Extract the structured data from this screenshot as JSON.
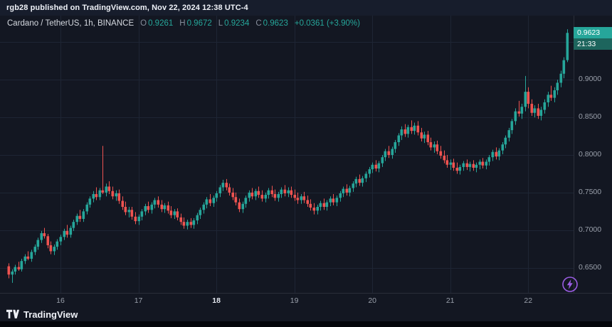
{
  "banner": {
    "text": "rgb28 published on TradingView.com, Nov 22, 2024 12:38 UTC-4"
  },
  "legend": {
    "title": "Cardano / TetherUS, 1h, BINANCE",
    "ohlc": [
      {
        "label": "O",
        "value": "0.9261"
      },
      {
        "label": "H",
        "value": "0.9672"
      },
      {
        "label": "L",
        "value": "0.9234"
      },
      {
        "label": "C",
        "value": "0.9623"
      }
    ],
    "change": "+0.0361 (+3.90%)"
  },
  "price_scale": {
    "last_price": "0.9623",
    "countdown": "21:33",
    "labels": [
      "0.9000",
      "0.8500",
      "0.8000",
      "0.7500",
      "0.7000",
      "0.6500"
    ]
  },
  "footer": {
    "brand": "TradingView"
  },
  "colors": {
    "up": "#26a69a",
    "down": "#ef5350",
    "background": "#131722",
    "banner_bg": "#171d2c",
    "grid": "#1e2534",
    "separator": "#2a2e39",
    "axis_text": "#9aa0ab",
    "tag_bg": "#26a69a",
    "countdown_bg": "#1d655d",
    "boost_purple": "#9b5de5"
  },
  "chart_data": {
    "type": "candlestick",
    "title": "Cardano / TetherUS",
    "exchange": "BINANCE",
    "interval": "1h",
    "last_candle": {
      "open": 0.9261,
      "high": 0.9672,
      "low": 0.9234,
      "close": 0.9623,
      "change": 0.0361,
      "change_pct": 3.9
    },
    "y_axis": {
      "min": 0.628,
      "max": 0.972,
      "gridlines": [
        0.65,
        0.7,
        0.75,
        0.8,
        0.85,
        0.9,
        0.95
      ]
    },
    "x_axis": {
      "ticks": [
        {
          "label": "16",
          "index": 16,
          "emphasis": false
        },
        {
          "label": "17",
          "index": 40,
          "emphasis": false
        },
        {
          "label": "18",
          "index": 64,
          "emphasis": true
        },
        {
          "label": "19",
          "index": 88,
          "emphasis": false
        },
        {
          "label": "20",
          "index": 112,
          "emphasis": false
        },
        {
          "label": "21",
          "index": 136,
          "emphasis": false
        },
        {
          "label": "22",
          "index": 160,
          "emphasis": false
        }
      ]
    },
    "ohlc_format": [
      "open",
      "high",
      "low",
      "close"
    ],
    "candles": [
      [
        0.652,
        0.656,
        0.636,
        0.641
      ],
      [
        0.641,
        0.648,
        0.63,
        0.645
      ],
      [
        0.645,
        0.654,
        0.641,
        0.651
      ],
      [
        0.651,
        0.658,
        0.646,
        0.648
      ],
      [
        0.648,
        0.662,
        0.645,
        0.659
      ],
      [
        0.659,
        0.668,
        0.655,
        0.665
      ],
      [
        0.665,
        0.672,
        0.66,
        0.662
      ],
      [
        0.662,
        0.674,
        0.658,
        0.671
      ],
      [
        0.671,
        0.681,
        0.667,
        0.678
      ],
      [
        0.678,
        0.69,
        0.674,
        0.687
      ],
      [
        0.687,
        0.699,
        0.683,
        0.696
      ],
      [
        0.696,
        0.703,
        0.689,
        0.692
      ],
      [
        0.692,
        0.695,
        0.676,
        0.68
      ],
      [
        0.68,
        0.685,
        0.668,
        0.672
      ],
      [
        0.672,
        0.681,
        0.667,
        0.678
      ],
      [
        0.678,
        0.688,
        0.674,
        0.685
      ],
      [
        0.685,
        0.694,
        0.68,
        0.691
      ],
      [
        0.691,
        0.702,
        0.687,
        0.699
      ],
      [
        0.699,
        0.707,
        0.69,
        0.694
      ],
      [
        0.694,
        0.706,
        0.69,
        0.703
      ],
      [
        0.703,
        0.714,
        0.699,
        0.711
      ],
      [
        0.711,
        0.722,
        0.707,
        0.719
      ],
      [
        0.719,
        0.727,
        0.711,
        0.715
      ],
      [
        0.715,
        0.728,
        0.711,
        0.725
      ],
      [
        0.725,
        0.737,
        0.721,
        0.734
      ],
      [
        0.734,
        0.745,
        0.73,
        0.742
      ],
      [
        0.742,
        0.752,
        0.737,
        0.748
      ],
      [
        0.748,
        0.757,
        0.74,
        0.744
      ],
      [
        0.744,
        0.756,
        0.74,
        0.753
      ],
      [
        0.753,
        0.812,
        0.748,
        0.75
      ],
      [
        0.75,
        0.762,
        0.745,
        0.758
      ],
      [
        0.758,
        0.765,
        0.748,
        0.752
      ],
      [
        0.752,
        0.758,
        0.741,
        0.745
      ],
      [
        0.745,
        0.753,
        0.739,
        0.749
      ],
      [
        0.749,
        0.754,
        0.735,
        0.739
      ],
      [
        0.739,
        0.745,
        0.727,
        0.731
      ],
      [
        0.731,
        0.738,
        0.72,
        0.724
      ],
      [
        0.724,
        0.731,
        0.717,
        0.727
      ],
      [
        0.727,
        0.731,
        0.714,
        0.718
      ],
      [
        0.718,
        0.724,
        0.708,
        0.712
      ],
      [
        0.712,
        0.721,
        0.707,
        0.718
      ],
      [
        0.718,
        0.728,
        0.713,
        0.725
      ],
      [
        0.725,
        0.735,
        0.72,
        0.732
      ],
      [
        0.732,
        0.738,
        0.723,
        0.727
      ],
      [
        0.727,
        0.737,
        0.722,
        0.734
      ],
      [
        0.734,
        0.743,
        0.729,
        0.74
      ],
      [
        0.74,
        0.745,
        0.73,
        0.734
      ],
      [
        0.734,
        0.74,
        0.724,
        0.728
      ],
      [
        0.728,
        0.736,
        0.723,
        0.733
      ],
      [
        0.733,
        0.738,
        0.722,
        0.726
      ],
      [
        0.726,
        0.732,
        0.716,
        0.72
      ],
      [
        0.72,
        0.728,
        0.715,
        0.725
      ],
      [
        0.725,
        0.729,
        0.713,
        0.717
      ],
      [
        0.717,
        0.722,
        0.707,
        0.711
      ],
      [
        0.711,
        0.717,
        0.702,
        0.706
      ],
      [
        0.706,
        0.714,
        0.701,
        0.711
      ],
      [
        0.711,
        0.716,
        0.703,
        0.707
      ],
      [
        0.707,
        0.716,
        0.702,
        0.713
      ],
      [
        0.713,
        0.723,
        0.708,
        0.72
      ],
      [
        0.72,
        0.73,
        0.715,
        0.727
      ],
      [
        0.727,
        0.737,
        0.722,
        0.734
      ],
      [
        0.734,
        0.744,
        0.729,
        0.741
      ],
      [
        0.741,
        0.748,
        0.732,
        0.736
      ],
      [
        0.736,
        0.746,
        0.731,
        0.743
      ],
      [
        0.743,
        0.752,
        0.738,
        0.749
      ],
      [
        0.749,
        0.76,
        0.744,
        0.757
      ],
      [
        0.757,
        0.767,
        0.752,
        0.763
      ],
      [
        0.763,
        0.768,
        0.753,
        0.757
      ],
      [
        0.757,
        0.762,
        0.746,
        0.75
      ],
      [
        0.75,
        0.756,
        0.74,
        0.744
      ],
      [
        0.744,
        0.75,
        0.733,
        0.737
      ],
      [
        0.737,
        0.742,
        0.724,
        0.728
      ],
      [
        0.728,
        0.738,
        0.723,
        0.735
      ],
      [
        0.735,
        0.746,
        0.73,
        0.743
      ],
      [
        0.743,
        0.753,
        0.738,
        0.75
      ],
      [
        0.75,
        0.756,
        0.741,
        0.745
      ],
      [
        0.745,
        0.755,
        0.74,
        0.752
      ],
      [
        0.752,
        0.758,
        0.743,
        0.747
      ],
      [
        0.747,
        0.753,
        0.738,
        0.742
      ],
      [
        0.742,
        0.75,
        0.737,
        0.747
      ],
      [
        0.747,
        0.756,
        0.742,
        0.753
      ],
      [
        0.753,
        0.759,
        0.744,
        0.748
      ],
      [
        0.748,
        0.754,
        0.739,
        0.743
      ],
      [
        0.743,
        0.751,
        0.738,
        0.748
      ],
      [
        0.748,
        0.757,
        0.743,
        0.754
      ],
      [
        0.754,
        0.76,
        0.745,
        0.749
      ],
      [
        0.749,
        0.757,
        0.744,
        0.753
      ],
      [
        0.753,
        0.758,
        0.743,
        0.747
      ],
      [
        0.747,
        0.754,
        0.739,
        0.743
      ],
      [
        0.743,
        0.75,
        0.735,
        0.74
      ],
      [
        0.74,
        0.748,
        0.735,
        0.745
      ],
      [
        0.745,
        0.751,
        0.736,
        0.74
      ],
      [
        0.74,
        0.746,
        0.731,
        0.735
      ],
      [
        0.735,
        0.741,
        0.726,
        0.73
      ],
      [
        0.73,
        0.736,
        0.721,
        0.726
      ],
      [
        0.726,
        0.734,
        0.721,
        0.731
      ],
      [
        0.731,
        0.739,
        0.726,
        0.736
      ],
      [
        0.736,
        0.742,
        0.727,
        0.731
      ],
      [
        0.731,
        0.74,
        0.726,
        0.737
      ],
      [
        0.737,
        0.745,
        0.732,
        0.742
      ],
      [
        0.742,
        0.748,
        0.733,
        0.737
      ],
      [
        0.737,
        0.746,
        0.732,
        0.743
      ],
      [
        0.743,
        0.752,
        0.738,
        0.749
      ],
      [
        0.749,
        0.758,
        0.744,
        0.755
      ],
      [
        0.755,
        0.761,
        0.746,
        0.75
      ],
      [
        0.75,
        0.759,
        0.745,
        0.756
      ],
      [
        0.756,
        0.765,
        0.751,
        0.762
      ],
      [
        0.762,
        0.771,
        0.757,
        0.768
      ],
      [
        0.768,
        0.774,
        0.759,
        0.763
      ],
      [
        0.763,
        0.772,
        0.758,
        0.769
      ],
      [
        0.769,
        0.778,
        0.764,
        0.775
      ],
      [
        0.775,
        0.784,
        0.77,
        0.781
      ],
      [
        0.781,
        0.79,
        0.776,
        0.787
      ],
      [
        0.787,
        0.793,
        0.778,
        0.782
      ],
      [
        0.782,
        0.792,
        0.777,
        0.789
      ],
      [
        0.789,
        0.8,
        0.784,
        0.797
      ],
      [
        0.797,
        0.808,
        0.792,
        0.805
      ],
      [
        0.805,
        0.812,
        0.796,
        0.8
      ],
      [
        0.8,
        0.811,
        0.795,
        0.808
      ],
      [
        0.808,
        0.82,
        0.803,
        0.817
      ],
      [
        0.817,
        0.829,
        0.812,
        0.826
      ],
      [
        0.826,
        0.838,
        0.82,
        0.834
      ],
      [
        0.834,
        0.841,
        0.824,
        0.828
      ],
      [
        0.828,
        0.84,
        0.823,
        0.837
      ],
      [
        0.837,
        0.846,
        0.828,
        0.832
      ],
      [
        0.832,
        0.843,
        0.827,
        0.839
      ],
      [
        0.839,
        0.845,
        0.826,
        0.83
      ],
      [
        0.83,
        0.836,
        0.818,
        0.822
      ],
      [
        0.822,
        0.831,
        0.816,
        0.827
      ],
      [
        0.827,
        0.832,
        0.813,
        0.817
      ],
      [
        0.817,
        0.823,
        0.806,
        0.81
      ],
      [
        0.81,
        0.818,
        0.803,
        0.814
      ],
      [
        0.814,
        0.819,
        0.801,
        0.805
      ],
      [
        0.805,
        0.812,
        0.795,
        0.799
      ],
      [
        0.799,
        0.806,
        0.789,
        0.793
      ],
      [
        0.793,
        0.8,
        0.783,
        0.787
      ],
      [
        0.787,
        0.794,
        0.78,
        0.79
      ],
      [
        0.79,
        0.795,
        0.779,
        0.783
      ],
      [
        0.783,
        0.79,
        0.775,
        0.779
      ],
      [
        0.779,
        0.787,
        0.774,
        0.784
      ],
      [
        0.784,
        0.792,
        0.779,
        0.789
      ],
      [
        0.789,
        0.794,
        0.78,
        0.784
      ],
      [
        0.784,
        0.791,
        0.778,
        0.788
      ],
      [
        0.788,
        0.793,
        0.779,
        0.783
      ],
      [
        0.783,
        0.79,
        0.777,
        0.787
      ],
      [
        0.787,
        0.794,
        0.781,
        0.791
      ],
      [
        0.791,
        0.796,
        0.782,
        0.786
      ],
      [
        0.786,
        0.794,
        0.781,
        0.791
      ],
      [
        0.791,
        0.8,
        0.786,
        0.797
      ],
      [
        0.797,
        0.807,
        0.792,
        0.804
      ],
      [
        0.804,
        0.81,
        0.794,
        0.798
      ],
      [
        0.798,
        0.809,
        0.793,
        0.806
      ],
      [
        0.806,
        0.817,
        0.801,
        0.814
      ],
      [
        0.814,
        0.826,
        0.809,
        0.823
      ],
      [
        0.823,
        0.836,
        0.818,
        0.833
      ],
      [
        0.833,
        0.848,
        0.828,
        0.845
      ],
      [
        0.845,
        0.862,
        0.84,
        0.858
      ],
      [
        0.858,
        0.872,
        0.851,
        0.855
      ],
      [
        0.855,
        0.868,
        0.848,
        0.864
      ],
      [
        0.864,
        0.905,
        0.858,
        0.884
      ],
      [
        0.884,
        0.89,
        0.862,
        0.868
      ],
      [
        0.868,
        0.874,
        0.852,
        0.856
      ],
      [
        0.856,
        0.866,
        0.85,
        0.862
      ],
      [
        0.862,
        0.868,
        0.848,
        0.852
      ],
      [
        0.852,
        0.864,
        0.846,
        0.86
      ],
      [
        0.86,
        0.874,
        0.855,
        0.87
      ],
      [
        0.87,
        0.884,
        0.864,
        0.88
      ],
      [
        0.88,
        0.892,
        0.872,
        0.876
      ],
      [
        0.876,
        0.89,
        0.87,
        0.886
      ],
      [
        0.886,
        0.9,
        0.88,
        0.896
      ],
      [
        0.896,
        0.912,
        0.89,
        0.908
      ],
      [
        0.908,
        0.93,
        0.902,
        0.926
      ],
      [
        0.9261,
        0.9672,
        0.9234,
        0.9623
      ]
    ]
  }
}
